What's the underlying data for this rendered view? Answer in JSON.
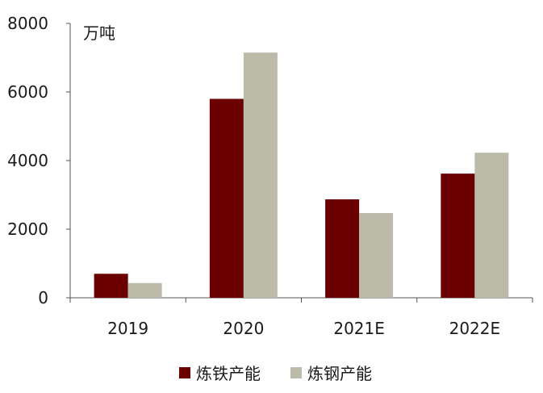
{
  "chart_data": {
    "type": "bar",
    "categories": [
      "2019",
      "2020",
      "2021E",
      "2022E"
    ],
    "series": [
      {
        "name": "炼铁产能",
        "values": [
          700,
          5800,
          2870,
          3620
        ],
        "color": "#6b0000"
      },
      {
        "name": "炼钢产能",
        "values": [
          430,
          7150,
          2470,
          4230
        ],
        "color": "#bcbbaa"
      }
    ],
    "unit_label": "万吨",
    "ylim": [
      0,
      8000
    ],
    "yticks": [
      "0",
      "2000",
      "4000",
      "6000",
      "8000"
    ],
    "grid": false,
    "legend_position": "bottom"
  }
}
